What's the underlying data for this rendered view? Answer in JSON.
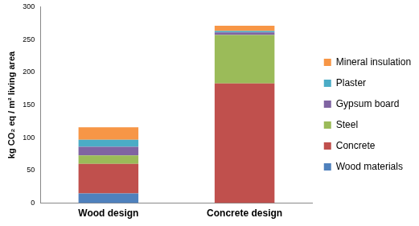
{
  "chart_data": {
    "type": "bar",
    "ylabel": "kg CO₂ eq / m² living area",
    "categories": [
      "Wood design",
      "Concrete design"
    ],
    "series": [
      {
        "name": "Wood materials",
        "color": "#4F81BD",
        "values": [
          15,
          0
        ]
      },
      {
        "name": "Concrete",
        "color": "#C0504D",
        "values": [
          45,
          183
        ]
      },
      {
        "name": "Steel",
        "color": "#9BBB59",
        "values": [
          13,
          74
        ]
      },
      {
        "name": "Gypsum board",
        "color": "#8064A2",
        "values": [
          13,
          4
        ]
      },
      {
        "name": "Plaster",
        "color": "#4BACC6",
        "values": [
          11,
          2
        ]
      },
      {
        "name": "Mineral insulation",
        "color": "#F79646",
        "values": [
          19,
          8
        ]
      }
    ],
    "stacked": true,
    "ylim": [
      0,
      300
    ],
    "yticks": [
      0,
      50,
      100,
      150,
      200,
      250,
      300
    ],
    "grid": false,
    "legend": "right"
  }
}
